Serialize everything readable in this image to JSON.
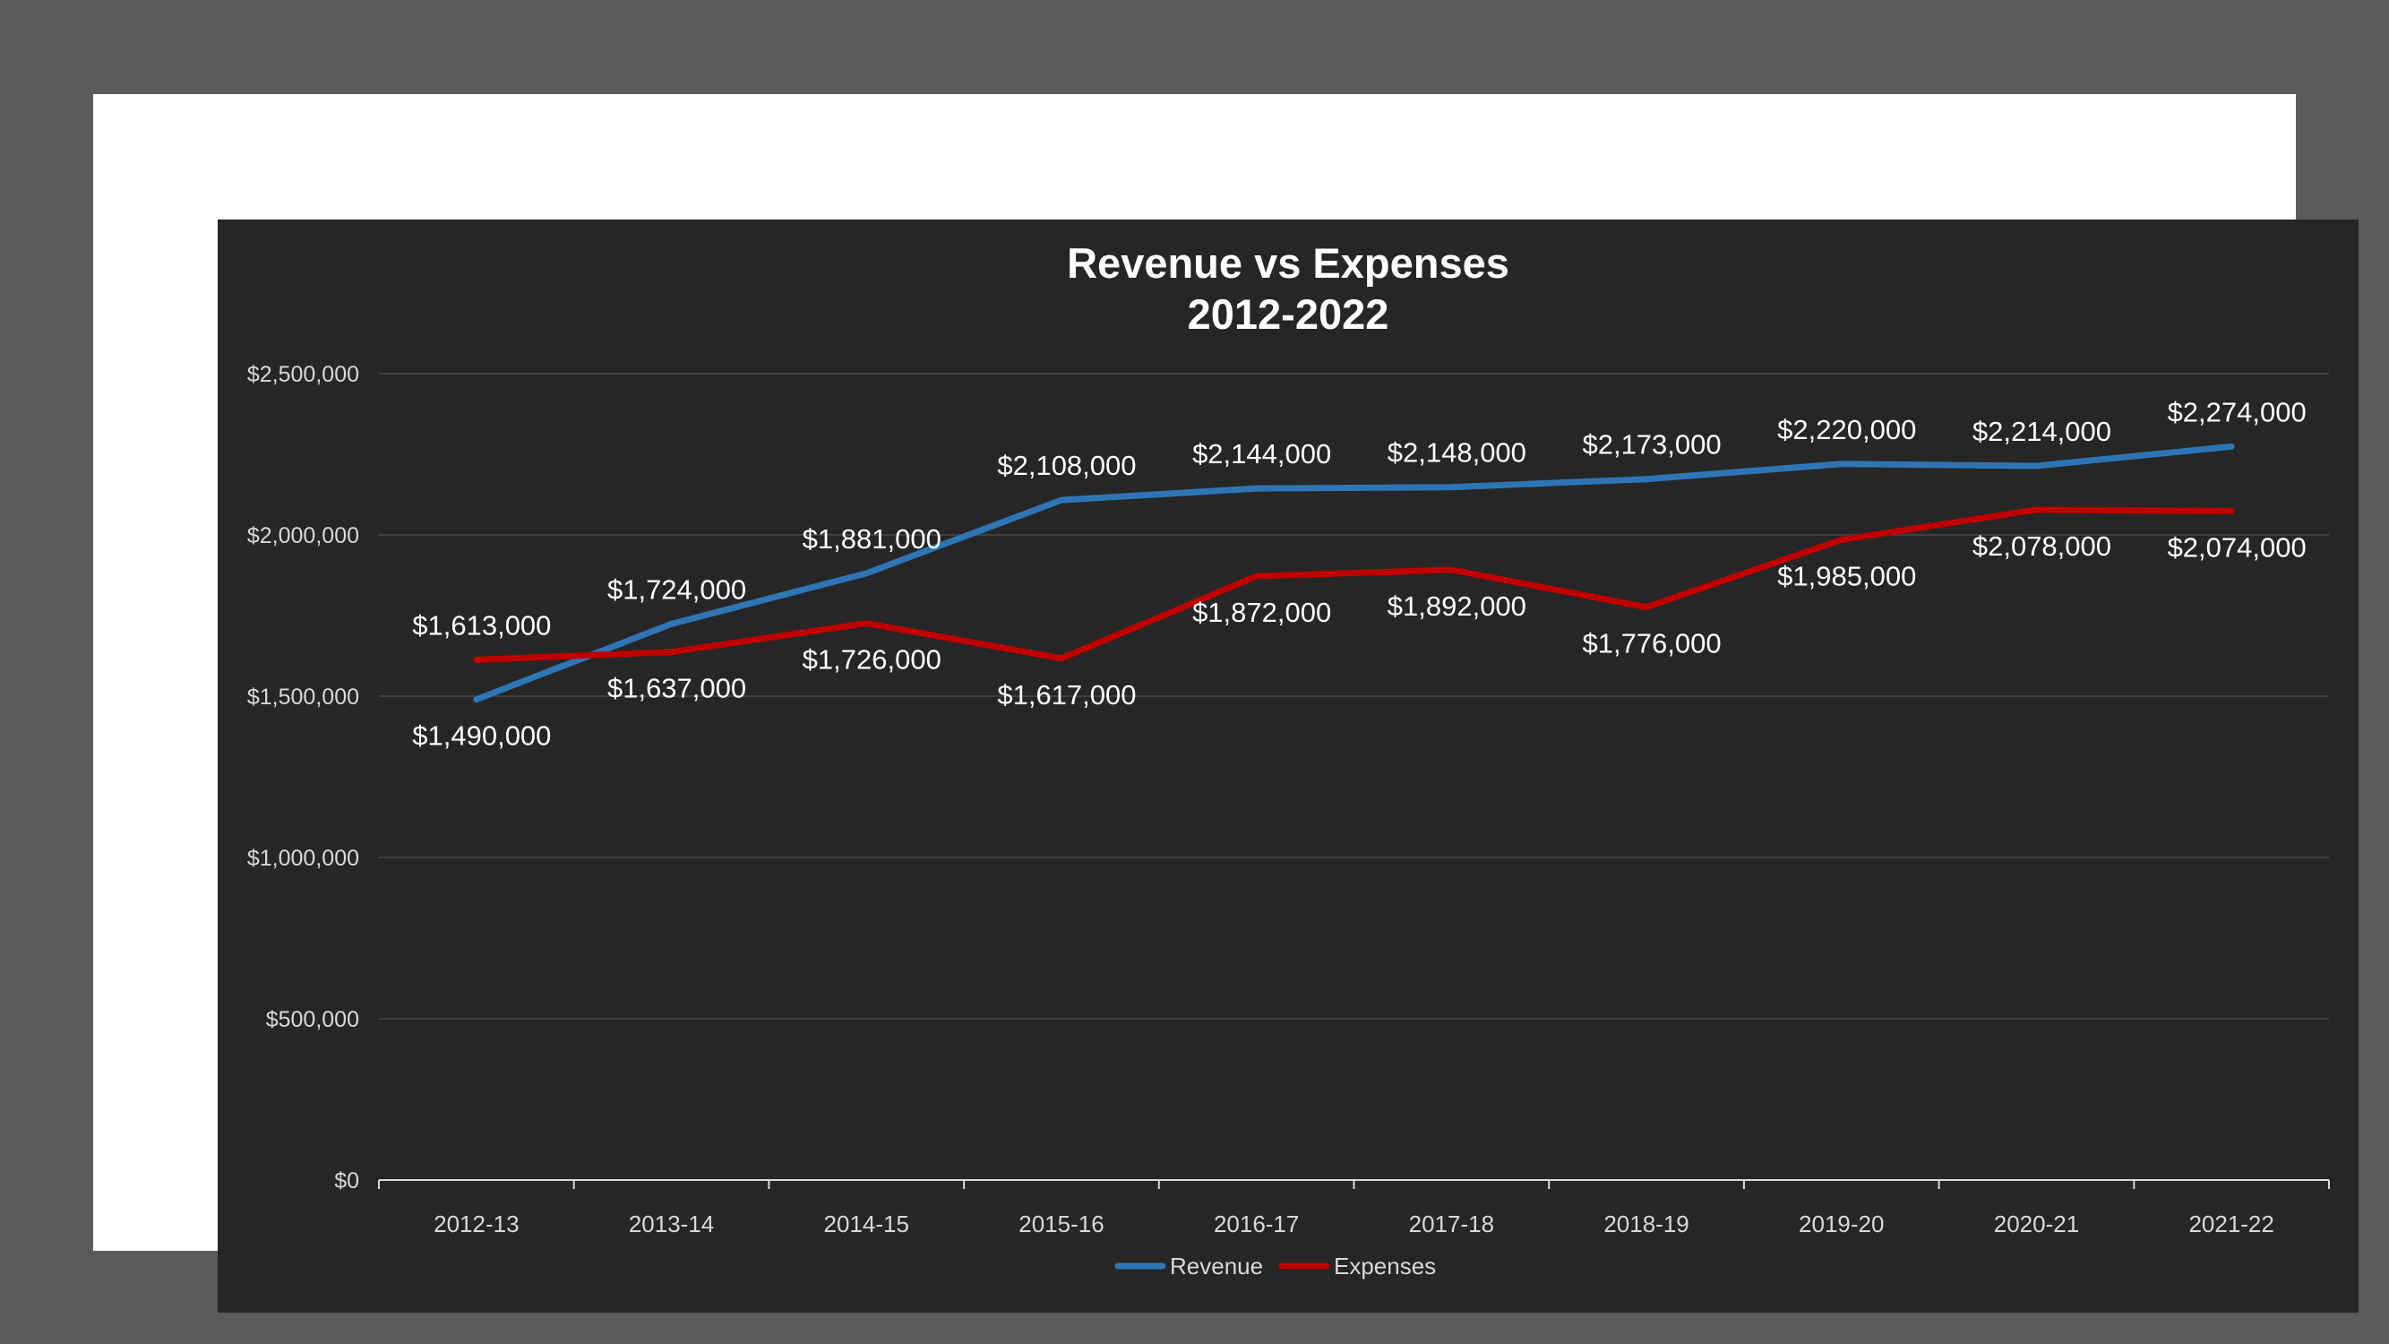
{
  "chart_data": {
    "type": "line",
    "title": [
      "Revenue vs Expenses",
      "2012-2022"
    ],
    "categories": [
      "2012-13",
      "2013-14",
      "2014-15",
      "2015-16",
      "2016-17",
      "2017-18",
      "2018-19",
      "2019-20",
      "2020-21",
      "2021-22"
    ],
    "series": [
      {
        "name": "Revenue",
        "color": "#2e75b6",
        "values": [
          1490000,
          1724000,
          1881000,
          2108000,
          2144000,
          2148000,
          2173000,
          2220000,
          2214000,
          2274000
        ],
        "labels": [
          "$1,490,000",
          "$1,724,000",
          "$1,881,000",
          "$2,108,000",
          "$2,144,000",
          "$2,148,000",
          "$2,173,000",
          "$2,220,000",
          "$2,214,000",
          "$2,274,000"
        ]
      },
      {
        "name": "Expenses",
        "color": "#c00000",
        "values": [
          1613000,
          1637000,
          1726000,
          1617000,
          1872000,
          1892000,
          1776000,
          1985000,
          2078000,
          2074000
        ],
        "labels": [
          "$1,613,000",
          "$1,637,000",
          "$1,726,000",
          "$1,617,000",
          "$1,872,000",
          "$1,892,000",
          "$1,776,000",
          "$1,985,000",
          "$2,078,000",
          "$2,074,000"
        ]
      }
    ],
    "yticks": [
      0,
      500000,
      1000000,
      1500000,
      2000000,
      2500000
    ],
    "ytick_labels": [
      "$0",
      "$500,000",
      "$1,000,000",
      "$1,500,000",
      "$2,000,000",
      "$2,500,000"
    ],
    "ylim": [
      0,
      2500000
    ],
    "grid": true,
    "legend_position": "bottom"
  },
  "colors": {
    "page_background": "#5b5b5b",
    "frame": "#ffffff",
    "plot_background": "#262626",
    "gridline": "#404040",
    "axis": "#d9d9d9"
  }
}
